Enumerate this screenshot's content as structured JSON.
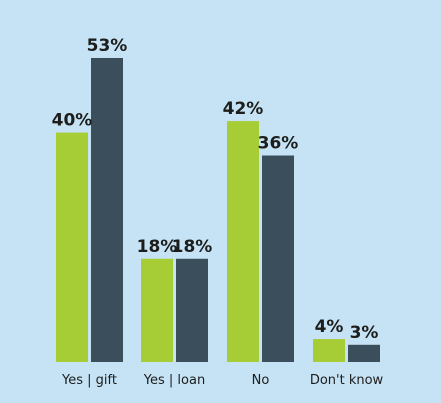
{
  "colors": {
    "background": "#c5e3f5",
    "series_a": "#a6cd35",
    "series_b": "#3b4e5c",
    "text": "#1d1d1b"
  },
  "chart_data": {
    "type": "bar",
    "categories": [
      "Yes | gift",
      "Yes | loan",
      "No",
      "Don't know"
    ],
    "series": [
      {
        "values": [
          40,
          18,
          42,
          4
        ],
        "labels": [
          "40%",
          "18%",
          "42%",
          "4%"
        ]
      },
      {
        "values": [
          53,
          18,
          36,
          3
        ],
        "labels": [
          "53%",
          "18%",
          "36%",
          "3%"
        ]
      }
    ],
    "title": "",
    "xlabel": "",
    "ylabel": "",
    "ylim": [
      0,
      53
    ],
    "grid": false,
    "legend": "none"
  }
}
